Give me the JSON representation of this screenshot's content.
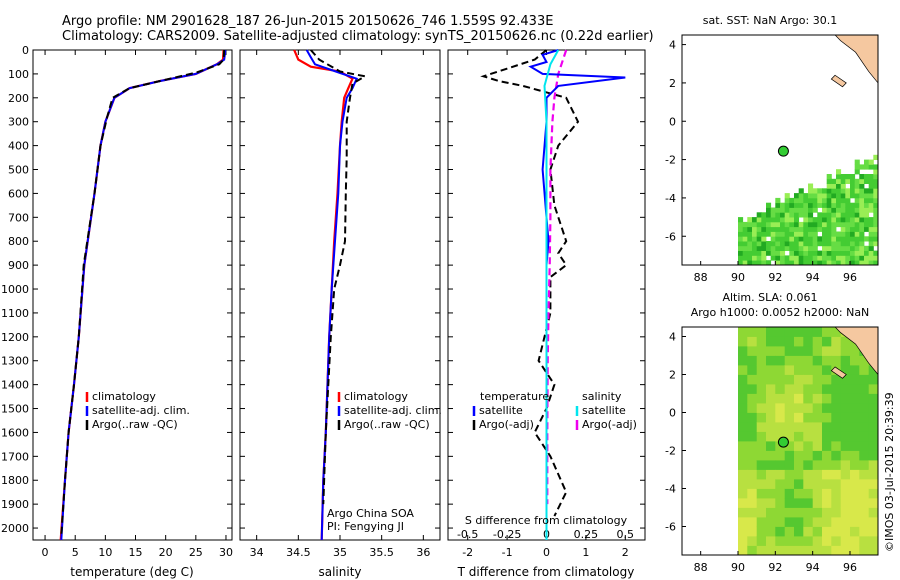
{
  "header": {
    "line1": "Argo profile: NM 2901628_187 26-Jun-2015 20150626_746 1.559S 92.433E",
    "line2": "Climatology: CARS2009. Satellite-adjusted climatology: synTS_20150626.nc (0.22d earlier)"
  },
  "colors": {
    "climatology": "#ff0000",
    "satellite": "#0000ff",
    "argo": "#000000",
    "sal_satellite": "#00e5ee",
    "sal_argo": "#ee00ee",
    "land": "#f5c8a0"
  },
  "panels": {
    "temperature": {
      "xlabel": "temperature (deg C)",
      "xticks": [
        "0",
        "5",
        "10",
        "15",
        "20",
        "25",
        "30"
      ],
      "legend": [
        "climatology",
        "satellite-adj. clim.",
        "Argo(..raw -QC)"
      ]
    },
    "salinity": {
      "xlabel": "salinity",
      "xticks": [
        "34",
        "34.5",
        "35",
        "35.5",
        "36"
      ],
      "legend": [
        "climatology",
        "satellite-adj. clim.",
        "Argo(..raw -QC)"
      ],
      "note1": "Argo China SOA",
      "note2": "PI: Fengying JI"
    },
    "difference": {
      "xlabel": "T difference from climatology",
      "top_label": "S difference from climatology",
      "xticks_t": [
        "-2",
        "-1",
        "0",
        "1",
        "2"
      ],
      "xticks_s": [
        "-0.5",
        "-0.25",
        "0",
        "0.25",
        "0.5"
      ],
      "legend_temp_title": "temperature",
      "legend_sal_title": "salinity",
      "legend_items": [
        "satellite",
        "Argo(-adj)",
        "satellite",
        "Argo(-adj)"
      ]
    },
    "yticks": [
      "0",
      "100",
      "200",
      "300",
      "400",
      "500",
      "600",
      "700",
      "800",
      "900",
      "1000",
      "1100",
      "1200",
      "1300",
      "1400",
      "1500",
      "1600",
      "1700",
      "1800",
      "1900",
      "2000"
    ],
    "map_sst": {
      "title": "sat. SST: NaN Argo: 30.1",
      "yticks": [
        "4",
        "2",
        "0",
        "-2",
        "-4",
        "-6"
      ],
      "xticks": [
        "88",
        "90",
        "92",
        "94",
        "96"
      ]
    },
    "map_sla": {
      "title1": "Altim. SLA: 0.061",
      "title2": "Argo h1000: 0.0052 h2000: NaN",
      "yticks": [
        "4",
        "2",
        "0",
        "-2",
        "-4",
        "-6"
      ],
      "xticks": [
        "88",
        "90",
        "92",
        "94",
        "96"
      ]
    },
    "timestamp": "©IMOS 03-Jul-2015 20:39:39"
  },
  "chart_data": [
    {
      "type": "line",
      "title": "",
      "xlabel": "temperature (deg C)",
      "ylabel": "",
      "xlim": [
        -2,
        31
      ],
      "ylim": [
        2050,
        0
      ],
      "series": [
        {
          "name": "climatology",
          "x": [
            29.6,
            29.5,
            28.5,
            25,
            19,
            14,
            11.5,
            10,
            9.2,
            8.2,
            6.5,
            5.6,
            4.8,
            3.9,
            3.3,
            2.6
          ],
          "y": [
            0,
            40,
            60,
            100,
            130,
            160,
            200,
            300,
            400,
            600,
            900,
            1200,
            1400,
            1600,
            1800,
            2050
          ]
        },
        {
          "name": "satellite-adj. clim.",
          "x": [
            29.9,
            29.7,
            28.5,
            25,
            19,
            14,
            11.5,
            10,
            9.2,
            8.2,
            6.5,
            5.6,
            4.8,
            3.9,
            3.3,
            2.7
          ],
          "y": [
            0,
            40,
            60,
            100,
            130,
            160,
            200,
            300,
            400,
            600,
            900,
            1200,
            1400,
            1600,
            1800,
            2050
          ]
        },
        {
          "name": "Argo(..raw -QC)",
          "x": [
            29.7,
            29.6,
            28.9,
            25,
            19,
            14,
            11.2,
            10.3,
            9.2,
            8.2,
            6.4,
            5.6,
            4.8,
            3.9,
            3.3,
            2.7
          ],
          "y": [
            0,
            40,
            60,
            95,
            130,
            160,
            200,
            280,
            400,
            600,
            900,
            1200,
            1400,
            1600,
            1800,
            2030
          ]
        }
      ]
    },
    {
      "type": "line",
      "title": "",
      "xlabel": "salinity",
      "ylabel": "",
      "xlim": [
        33.8,
        36.2
      ],
      "ylim": [
        2050,
        0
      ],
      "series": [
        {
          "name": "climatology",
          "x": [
            34.45,
            34.5,
            34.65,
            35.0,
            35.15,
            35.1,
            35.05,
            35.02,
            35.0,
            34.97,
            34.93,
            34.9,
            34.87,
            34.85,
            34.83,
            34.8,
            34.78
          ],
          "y": [
            0,
            40,
            70,
            90,
            120,
            160,
            200,
            300,
            400,
            600,
            800,
            1000,
            1200,
            1400,
            1600,
            1800,
            2050
          ]
        },
        {
          "name": "satellite-adj. clim.",
          "x": [
            34.6,
            34.65,
            34.7,
            34.95,
            35.2,
            35.15,
            35.08,
            35.03,
            35.0,
            34.98,
            34.94,
            34.9,
            34.87,
            34.85,
            34.83,
            34.8,
            34.78
          ],
          "y": [
            0,
            30,
            60,
            90,
            120,
            160,
            200,
            300,
            400,
            600,
            800,
            1000,
            1200,
            1400,
            1600,
            1800,
            2050
          ]
        },
        {
          "name": "Argo(..raw -QC)",
          "x": [
            34.65,
            34.75,
            35.0,
            35.3,
            35.15,
            35.12,
            35.1,
            35.08,
            35.08,
            35.07,
            35.06,
            35.0,
            34.93,
            34.89,
            34.86,
            34.83,
            34.8
          ],
          "y": [
            0,
            40,
            90,
            110,
            140,
            200,
            250,
            300,
            450,
            600,
            800,
            900,
            1000,
            1200,
            1400,
            1600,
            1900
          ]
        }
      ]
    },
    {
      "type": "line",
      "title": "",
      "xlabel": "T difference from climatology",
      "ylabel": "",
      "xlim": [
        -2.5,
        2.5
      ],
      "ylim": [
        2050,
        0
      ],
      "series": [
        {
          "name": "satellite",
          "x": [
            0.3,
            -0.1,
            0,
            -0.4,
            -0.1,
            2.0,
            0.3,
            0,
            0,
            -0.1,
            0,
            0.05,
            0,
            0,
            0,
            0,
            0,
            0
          ],
          "y": [
            0,
            20,
            50,
            70,
            100,
            115,
            150,
            200,
            300,
            500,
            700,
            800,
            900,
            1000,
            1200,
            1500,
            1800,
            2050
          ]
        },
        {
          "name": "Argo(-adj)",
          "x": [
            0,
            -0.3,
            -1.6,
            -1.2,
            -0.6,
            0.5,
            0.8,
            0.3,
            0.1,
            0.2,
            0.5,
            0.3,
            0.5,
            0.1,
            0.1,
            -0.2,
            0.2,
            0,
            -0.3,
            0.1,
            0.5,
            0.2
          ],
          "y": [
            0,
            40,
            110,
            130,
            150,
            200,
            300,
            400,
            500,
            650,
            800,
            850,
            900,
            950,
            1100,
            1300,
            1400,
            1500,
            1600,
            1700,
            1850,
            1950
          ]
        },
        {
          "name": "satellite",
          "x": [
            0.3,
            0.1,
            -0.05,
            0,
            0,
            0,
            0,
            0,
            0,
            0
          ],
          "y": [
            0,
            60,
            150,
            300,
            500,
            800,
            1000,
            1400,
            1800,
            2050
          ]
        },
        {
          "name": "Argo(-adj)",
          "x": [
            0.5,
            0.3,
            0.2,
            0.15,
            0.1,
            0.1,
            0.08,
            0.05,
            0.03,
            0.02,
            0.02
          ],
          "y": [
            0,
            100,
            200,
            300,
            500,
            700,
            900,
            1100,
            1300,
            1600,
            1900
          ]
        }
      ]
    },
    {
      "type": "heatmap",
      "title": "sat. SST: NaN Argo: 30.1",
      "xlabel": "",
      "ylabel": "",
      "xlim": [
        87,
        97.5
      ],
      "ylim": [
        -7.5,
        4.5
      ],
      "float_position": {
        "lon": 92.433,
        "lat": -1.559
      }
    },
    {
      "type": "heatmap",
      "title": "Altim. SLA: 0.061",
      "xlabel": "",
      "ylabel": "",
      "xlim": [
        87,
        97.5
      ],
      "ylim": [
        -7.5,
        4.5
      ],
      "float_position": {
        "lon": 92.433,
        "lat": -1.559
      }
    }
  ]
}
